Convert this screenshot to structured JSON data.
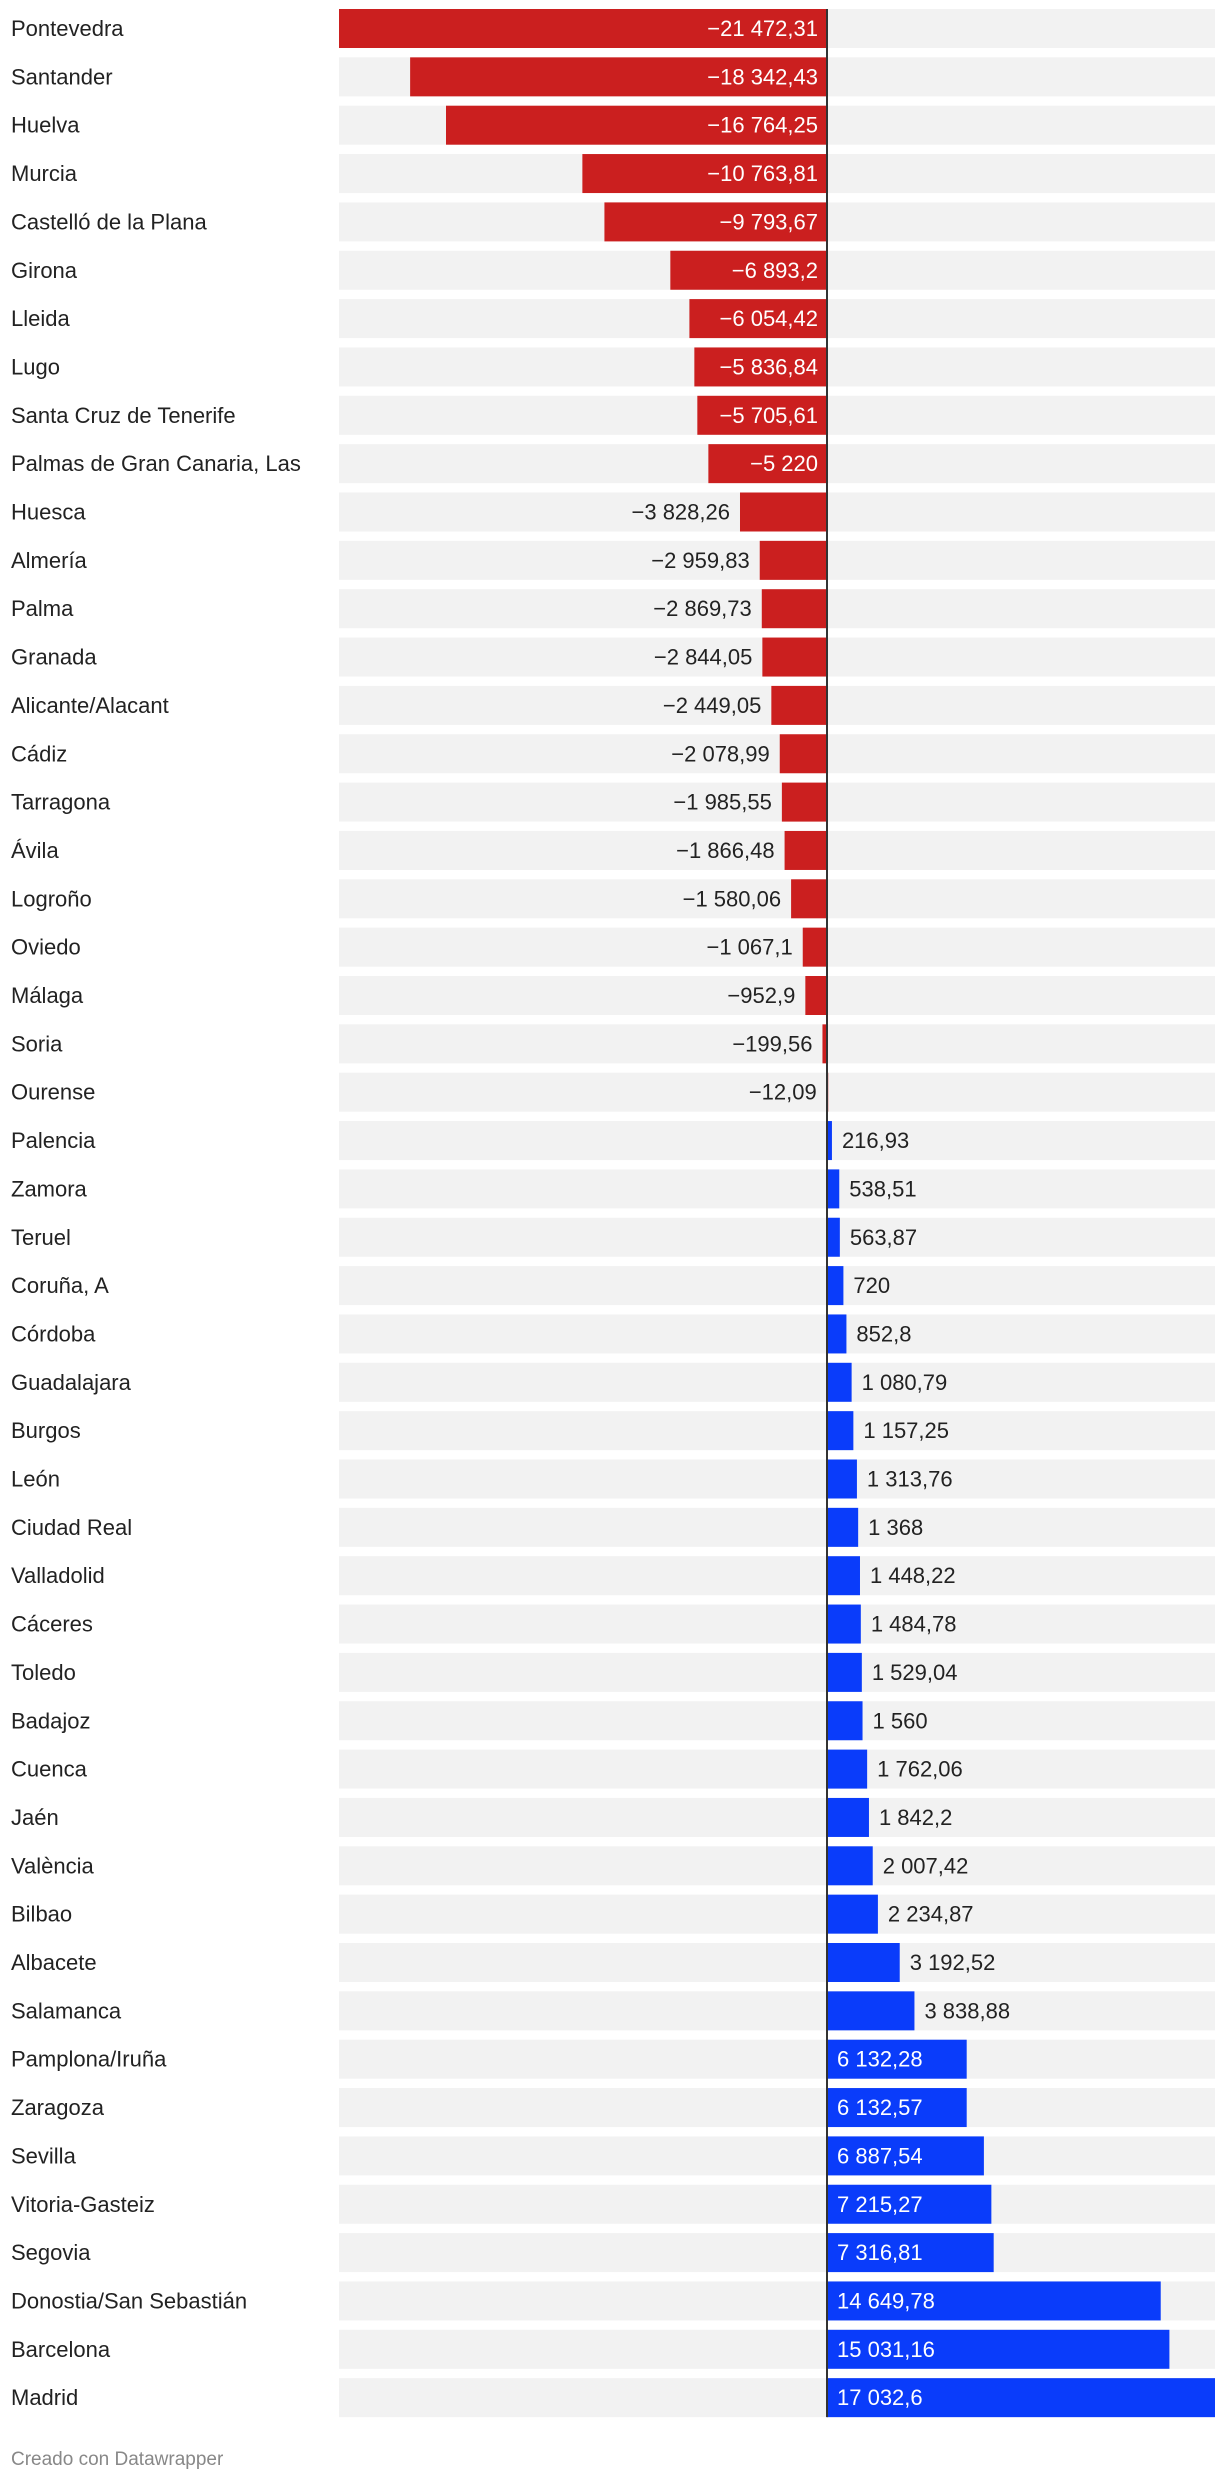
{
  "footer": "Creado con Datawrapper",
  "colors": {
    "negative": "#cb1f1f",
    "positive": "#0a3cfa",
    "track": "#f2f2f2",
    "axis": "#333333"
  },
  "chart_data": {
    "type": "bar",
    "orientation": "horizontal",
    "title": "",
    "xlim": [
      -21472.31,
      17032.6
    ],
    "grid": false,
    "categories": [
      "Pontevedra",
      "Santander",
      "Huelva",
      "Murcia",
      "Castelló de la Plana",
      "Girona",
      "Lleida",
      "Lugo",
      "Santa Cruz de Tenerife",
      "Palmas de Gran Canaria, Las",
      "Huesca",
      "Almería",
      "Palma",
      "Granada",
      "Alicante/Alacant",
      "Cádiz",
      "Tarragona",
      "Ávila",
      "Logroño",
      "Oviedo",
      "Málaga",
      "Soria",
      "Ourense",
      "Palencia",
      "Zamora",
      "Teruel",
      "Coruña, A",
      "Córdoba",
      "Guadalajara",
      "Burgos",
      "León",
      "Ciudad Real",
      "Valladolid",
      "Cáceres",
      "Toledo",
      "Badajoz",
      "Cuenca",
      "Jaén",
      "València",
      "Bilbao",
      "Albacete",
      "Salamanca",
      "Pamplona/Iruña",
      "Zaragoza",
      "Sevilla",
      "Vitoria-Gasteiz",
      "Segovia",
      "Donostia/San Sebastián",
      "Barcelona",
      "Madrid"
    ],
    "values": [
      -21472.31,
      -18342.43,
      -16764.25,
      -10763.81,
      -9793.67,
      -6893.2,
      -6054.42,
      -5836.84,
      -5705.61,
      -5220,
      -3828.26,
      -2959.83,
      -2869.73,
      -2844.05,
      -2449.05,
      -2078.99,
      -1985.55,
      -1866.48,
      -1580.06,
      -1067.1,
      -952.9,
      -199.56,
      -12.09,
      216.93,
      538.51,
      563.87,
      720,
      852.8,
      1080.79,
      1157.25,
      1313.76,
      1368,
      1448.22,
      1484.78,
      1529.04,
      1560,
      1762.06,
      1842.2,
      2007.42,
      2234.87,
      3192.52,
      3838.88,
      6132.28,
      6132.57,
      6887.54,
      7215.27,
      7316.81,
      14649.78,
      15031.16,
      17032.6
    ],
    "value_labels": [
      "−21 472,31",
      "−18 342,43",
      "−16 764,25",
      "−10 763,81",
      "−9 793,67",
      "−6 893,2",
      "−6 054,42",
      "−5 836,84",
      "−5 705,61",
      "−5 220",
      "−3 828,26",
      "−2 959,83",
      "−2 869,73",
      "−2 844,05",
      "−2 449,05",
      "−2 078,99",
      "−1 985,55",
      "−1 866,48",
      "−1 580,06",
      "−1 067,1",
      "−952,9",
      "−199,56",
      "−12,09",
      "216,93",
      "538,51",
      "563,87",
      "720",
      "852,8",
      "1 080,79",
      "1 157,25",
      "1 313,76",
      "1 368",
      "1 448,22",
      "1 484,78",
      "1 529,04",
      "1 560",
      "1 762,06",
      "1 842,2",
      "2 007,42",
      "2 234,87",
      "3 192,52",
      "3 838,88",
      "6 132,28",
      "6 132,57",
      "6 887,54",
      "7 215,27",
      "7 316,81",
      "14 649,78",
      "15 031,16",
      "17 032,6"
    ]
  }
}
